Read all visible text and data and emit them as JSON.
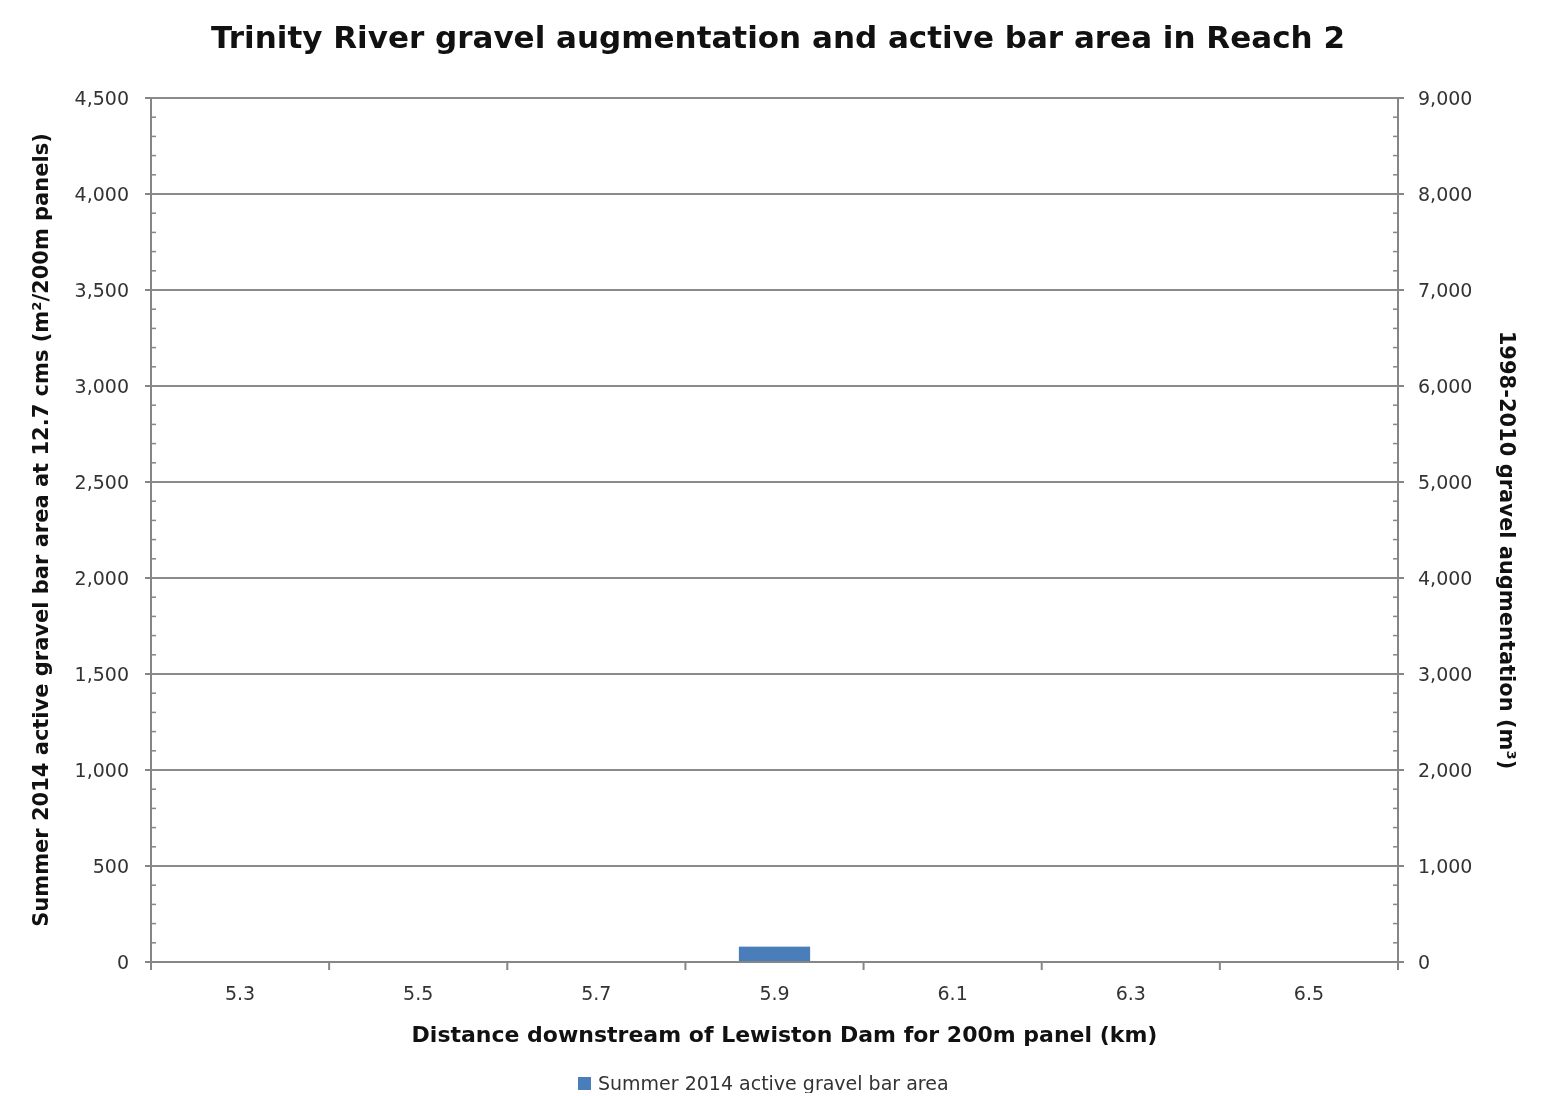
{
  "chart_data": {
    "type": "bar",
    "title": "Trinity River gravel augmentation and active bar area in Reach 2",
    "xlabel": "Distance downstream of Lewiston Dam for 200m panel (km)",
    "ylabel": "Summer 2014 active gravel bar area at 12.7 cms (m²/200m panels)",
    "y2label": "1998-2010 gravel augmentation (m³)",
    "categories": [
      "5.3",
      "5.5",
      "5.7",
      "5.9",
      "6.1",
      "6.3",
      "6.5"
    ],
    "series": [
      {
        "name": "Summer 2014 active gravel bar area",
        "color": "#4a7ebb",
        "values": [
          null,
          null,
          null,
          80,
          null,
          null,
          null
        ]
      }
    ],
    "ylim": [
      0,
      4500
    ],
    "yticks": [
      {
        "value": 0,
        "label": "0"
      },
      {
        "value": 500,
        "label": "500"
      },
      {
        "value": 1000,
        "label": "1,000"
      },
      {
        "value": 1500,
        "label": "1,500"
      },
      {
        "value": 2000,
        "label": "2,000"
      },
      {
        "value": 2500,
        "label": "2,500"
      },
      {
        "value": 3000,
        "label": "3,000"
      },
      {
        "value": 3500,
        "label": "3,500"
      },
      {
        "value": 4000,
        "label": "4,000"
      },
      {
        "value": 4500,
        "label": "4,500"
      }
    ],
    "y2lim": [
      0,
      9000
    ],
    "y2ticks": [
      {
        "value": 0,
        "label": "0"
      },
      {
        "value": 1000,
        "label": "1,000"
      },
      {
        "value": 2000,
        "label": "2,000"
      },
      {
        "value": 3000,
        "label": "3,000"
      },
      {
        "value": 4000,
        "label": "4,000"
      },
      {
        "value": 5000,
        "label": "5,000"
      },
      {
        "value": 6000,
        "label": "6,000"
      },
      {
        "value": 7000,
        "label": "7,000"
      },
      {
        "value": 8000,
        "label": "8,000"
      },
      {
        "value": 9000,
        "label": "9,000"
      }
    ],
    "grid": "y",
    "legend": "bottom"
  }
}
